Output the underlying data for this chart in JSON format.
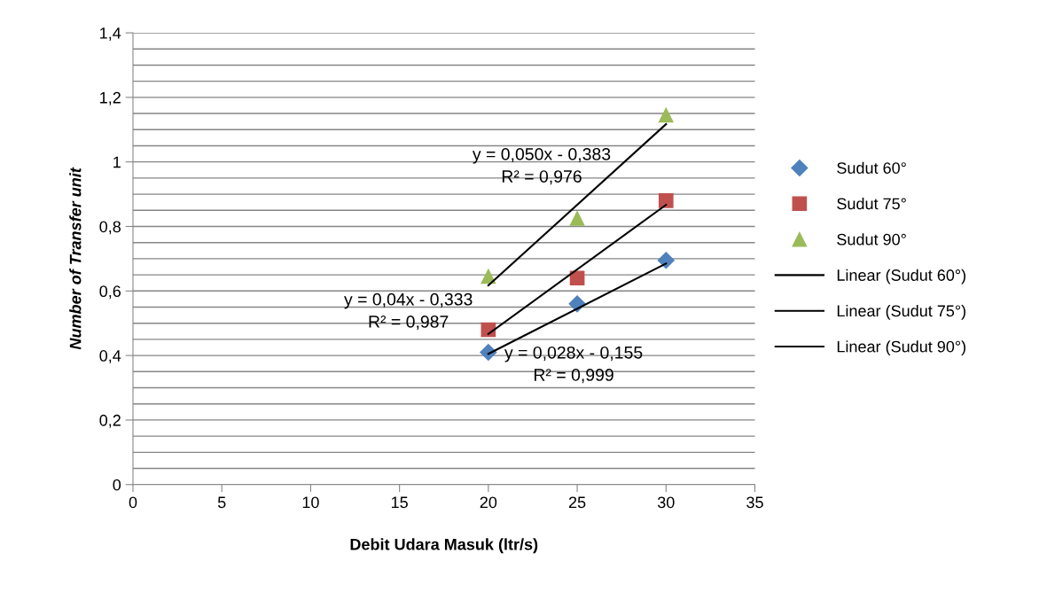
{
  "chart_data": {
    "type": "scatter",
    "xlabel": "Debit Udara Masuk (ltr/s)",
    "ylabel": "Number of Transfer unit",
    "xlim": [
      0,
      35
    ],
    "xticks": [
      0,
      5,
      10,
      15,
      20,
      25,
      30,
      35
    ],
    "ylim": [
      0,
      1.4
    ],
    "yticks": [
      {
        "value": 0,
        "label": "0"
      },
      {
        "value": 0.05,
        "label": null
      },
      {
        "value": 0.1,
        "label": null
      },
      {
        "value": 0.15,
        "label": null
      },
      {
        "value": 0.2,
        "label": "0,2"
      },
      {
        "value": 0.25,
        "label": null
      },
      {
        "value": 0.3,
        "label": null
      },
      {
        "value": 0.35,
        "label": null
      },
      {
        "value": 0.4,
        "label": "0,4"
      },
      {
        "value": 0.45,
        "label": null
      },
      {
        "value": 0.5,
        "label": null
      },
      {
        "value": 0.55,
        "label": null
      },
      {
        "value": 0.6,
        "label": "0,6"
      },
      {
        "value": 0.65,
        "label": null
      },
      {
        "value": 0.7,
        "label": null
      },
      {
        "value": 0.75,
        "label": null
      },
      {
        "value": 0.8,
        "label": "0,8"
      },
      {
        "value": 0.85,
        "label": null
      },
      {
        "value": 0.9,
        "label": null
      },
      {
        "value": 0.95,
        "label": null
      },
      {
        "value": 1,
        "label": "1"
      },
      {
        "value": 1.05,
        "label": null
      },
      {
        "value": 1.1,
        "label": null
      },
      {
        "value": 1.15,
        "label": null
      },
      {
        "value": 1.2,
        "label": "1,2"
      },
      {
        "value": 1.25,
        "label": null
      },
      {
        "value": 1.3,
        "label": null
      },
      {
        "value": 1.35,
        "label": null
      },
      {
        "value": 1.4,
        "label": "1,4"
      }
    ],
    "grid": "y",
    "legend": "right",
    "series": [
      {
        "name": "Sudut 60°",
        "color": "#4f81bd",
        "marker": "diamond",
        "x": [
          20,
          25,
          30
        ],
        "values": [
          0.41,
          0.56,
          0.695
        ]
      },
      {
        "name": "Sudut 75°",
        "color": "#c0504d",
        "marker": "square",
        "x": [
          20,
          25,
          30
        ],
        "values": [
          0.48,
          0.64,
          0.88
        ]
      },
      {
        "name": "Sudut 90°",
        "color": "#9bbb59",
        "marker": "triangle",
        "x": [
          20,
          25,
          30
        ],
        "values": [
          0.645,
          0.825,
          1.145
        ]
      },
      {
        "name": "Linear (Sudut 60°)",
        "type": "line",
        "color": "#000000",
        "x": [
          20,
          30
        ],
        "values": [
          0.405,
          0.685
        ]
      },
      {
        "name": "Linear (Sudut 75°)",
        "type": "line",
        "color": "#000000",
        "x": [
          20,
          30
        ],
        "values": [
          0.467,
          0.867
        ]
      },
      {
        "name": "Linear (Sudut 90°)",
        "type": "line",
        "color": "#000000",
        "x": [
          20,
          30
        ],
        "values": [
          0.617,
          1.117
        ]
      }
    ],
    "annotations": [
      "y = 0,050x - 0,383\nR² = 0,976",
      "y = 0,04x - 0,333\nR² = 0,987",
      "y = 0,028x - 0,155\nR² = 0,999"
    ]
  }
}
